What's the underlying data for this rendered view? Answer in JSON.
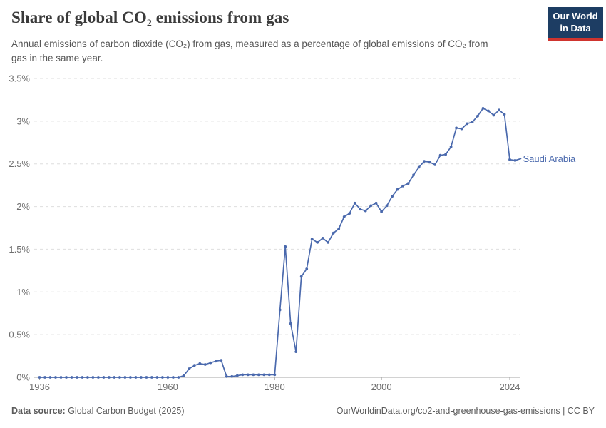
{
  "header": {
    "title": "Share of global CO₂ emissions from gas",
    "subtitle": "Annual emissions of carbon dioxide (CO₂) from gas, measured as a percentage of global emissions of CO₂ from gas in the same year.",
    "logo": {
      "line1": "Our World",
      "line2": "in Data",
      "bg_color": "#1d3d63",
      "bar_color": "#cf342e"
    }
  },
  "footer": {
    "datasource_label": "Data source:",
    "datasource_value": " Global Carbon Budget (2025)",
    "attribution": "OurWorldinData.org/co2-and-greenhouse-gas-emissions | CC BY"
  },
  "chart_data": {
    "type": "line",
    "title": "Share of global CO₂ emissions from gas",
    "xlabel": "",
    "ylabel": "",
    "xlim": [
      1935,
      2026
    ],
    "ylim": [
      0,
      3.5
    ],
    "xticks": [
      1936,
      1960,
      1980,
      2000,
      2024
    ],
    "yticks": [
      0,
      0.5,
      1,
      1.5,
      2,
      2.5,
      3,
      3.5
    ],
    "ytick_labels": [
      "0%",
      "0.5%",
      "1%",
      "1.5%",
      "2%",
      "2.5%",
      "3%",
      "3.5%"
    ],
    "grid": "horizontal-dashed",
    "legend_position": "end-of-line-label",
    "line_color": "#4a69ad",
    "grid_color": "#dedede",
    "axis_color": "#a5a5a5",
    "tick_label_color": "#6e6e6e",
    "series": [
      {
        "name": "Saudi Arabia",
        "x": [
          1936,
          1937,
          1938,
          1939,
          1940,
          1941,
          1942,
          1943,
          1944,
          1945,
          1946,
          1947,
          1948,
          1949,
          1950,
          1951,
          1952,
          1953,
          1954,
          1955,
          1956,
          1957,
          1958,
          1959,
          1960,
          1961,
          1962,
          1963,
          1964,
          1965,
          1966,
          1967,
          1968,
          1969,
          1970,
          1971,
          1972,
          1973,
          1974,
          1975,
          1976,
          1977,
          1978,
          1979,
          1980,
          1981,
          1982,
          1983,
          1984,
          1985,
          1986,
          1987,
          1988,
          1989,
          1990,
          1991,
          1992,
          1993,
          1994,
          1995,
          1996,
          1997,
          1998,
          1999,
          2000,
          2001,
          2002,
          2003,
          2004,
          2005,
          2006,
          2007,
          2008,
          2009,
          2010,
          2011,
          2012,
          2013,
          2014,
          2015,
          2016,
          2017,
          2018,
          2019,
          2020,
          2021,
          2022,
          2023,
          2024,
          2025
        ],
        "values": [
          0,
          0,
          0,
          0,
          0,
          0,
          0,
          0,
          0,
          0,
          0,
          0,
          0,
          0,
          0,
          0,
          0,
          0,
          0,
          0,
          0,
          0,
          0,
          0,
          0,
          0,
          0,
          0.02,
          0.1,
          0.14,
          0.16,
          0.15,
          0.17,
          0.19,
          0.2,
          0.01,
          0.01,
          0.02,
          0.03,
          0.03,
          0.03,
          0.03,
          0.03,
          0.03,
          0.03,
          0.79,
          1.53,
          0.63,
          0.3,
          1.18,
          1.27,
          1.62,
          1.58,
          1.63,
          1.58,
          1.69,
          1.74,
          1.88,
          1.92,
          2.04,
          1.97,
          1.95,
          2.01,
          2.04,
          1.94,
          2.01,
          2.12,
          2.2,
          2.24,
          2.27,
          2.37,
          2.46,
          2.53,
          2.52,
          2.49,
          2.6,
          2.61,
          2.7,
          2.92,
          2.91,
          2.97,
          2.99,
          3.06,
          3.15,
          3.12,
          3.07,
          3.13,
          3.08,
          2.55,
          2.54
        ]
      }
    ]
  }
}
